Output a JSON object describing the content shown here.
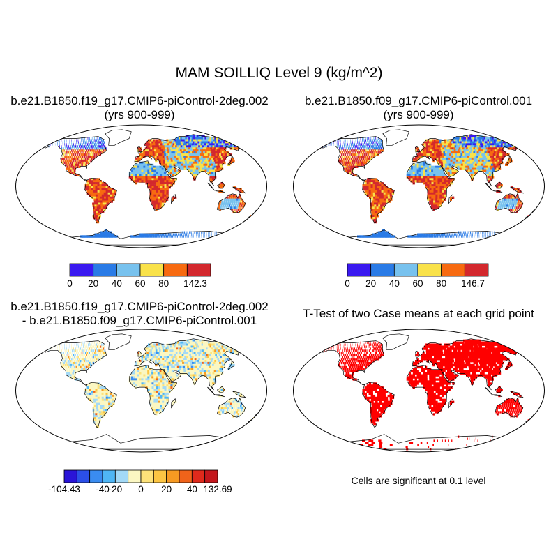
{
  "title": "MAM SOILLIQ Level 9 (kg/m^2)",
  "panels": [
    {
      "id": "case1",
      "title_line1": "b.e21.B1850.f19_g17.CMIP6-piControl-2deg.002",
      "title_line2": "(yrs 900-999)",
      "colorbar": {
        "colors": [
          "#3a19f0",
          "#2a7be6",
          "#78c2ee",
          "#f9e24a",
          "#f76a10",
          "#d3282d"
        ],
        "tick_labels": [
          "0",
          "20",
          "40",
          "60",
          "80",
          "142.3"
        ]
      }
    },
    {
      "id": "case2",
      "title_line1": "b.e21.B1850.f09_g17.CMIP6-piControl.001",
      "title_line2": "(yrs 900-999)",
      "colorbar": {
        "colors": [
          "#3a19f0",
          "#2a7be6",
          "#78c2ee",
          "#f9e24a",
          "#f76a10",
          "#d3282d"
        ],
        "tick_labels": [
          "0",
          "20",
          "40",
          "60",
          "80",
          "146.7"
        ]
      }
    },
    {
      "id": "difference",
      "title_line1": "b.e21.B1850.f19_g17.CMIP6-piControl-2deg.002",
      "title_line2": "- b.e21.B1850.f09_g17.CMIP6-piControl.001",
      "colorbar": {
        "colors": [
          "#2a14d8",
          "#2b4fe8",
          "#3a8cf0",
          "#4fb6f5",
          "#a3d9f6",
          "#fbf7c2",
          "#fde27a",
          "#fcc543",
          "#f79a22",
          "#f0631a",
          "#e02a1c",
          "#c4161c"
        ],
        "tick_labels": [
          "-104.43",
          "-40",
          "-20",
          "0",
          "20",
          "40",
          "132.69"
        ]
      }
    },
    {
      "id": "ttest",
      "title_line1": "T-Test of two Case means at each grid point",
      "note": "Cells are significant at 0.1 level",
      "significant_color": "#ff0000"
    }
  ]
}
